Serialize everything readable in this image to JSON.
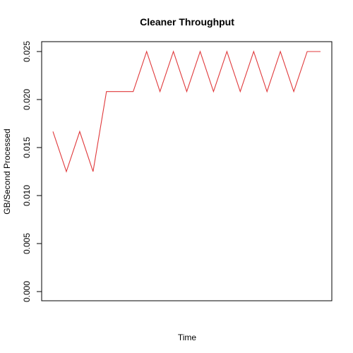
{
  "chart_data": {
    "type": "line",
    "title": "Cleaner Throughput",
    "xlabel": "Time",
    "ylabel": "GB/Second Processed",
    "ylim": [
      0,
      0.025
    ],
    "yticks": [
      "0.000",
      "0.005",
      "0.010",
      "0.015",
      "0.020",
      "0.025"
    ],
    "x": [
      1,
      2,
      3,
      4,
      5,
      6,
      7,
      8,
      9,
      10,
      11,
      12,
      13,
      14,
      15,
      16,
      17,
      18,
      19,
      20,
      21
    ],
    "series": [
      {
        "color": "#e0393b",
        "values": [
          0.01667,
          0.0125,
          0.01667,
          0.0125,
          0.02083,
          0.02083,
          0.02083,
          0.025,
          0.02083,
          0.025,
          0.02083,
          0.025,
          0.02083,
          0.025,
          0.02083,
          0.025,
          0.02083,
          0.025,
          0.02083,
          0.025,
          0.025
        ]
      }
    ],
    "grid": false,
    "legend": "none"
  }
}
